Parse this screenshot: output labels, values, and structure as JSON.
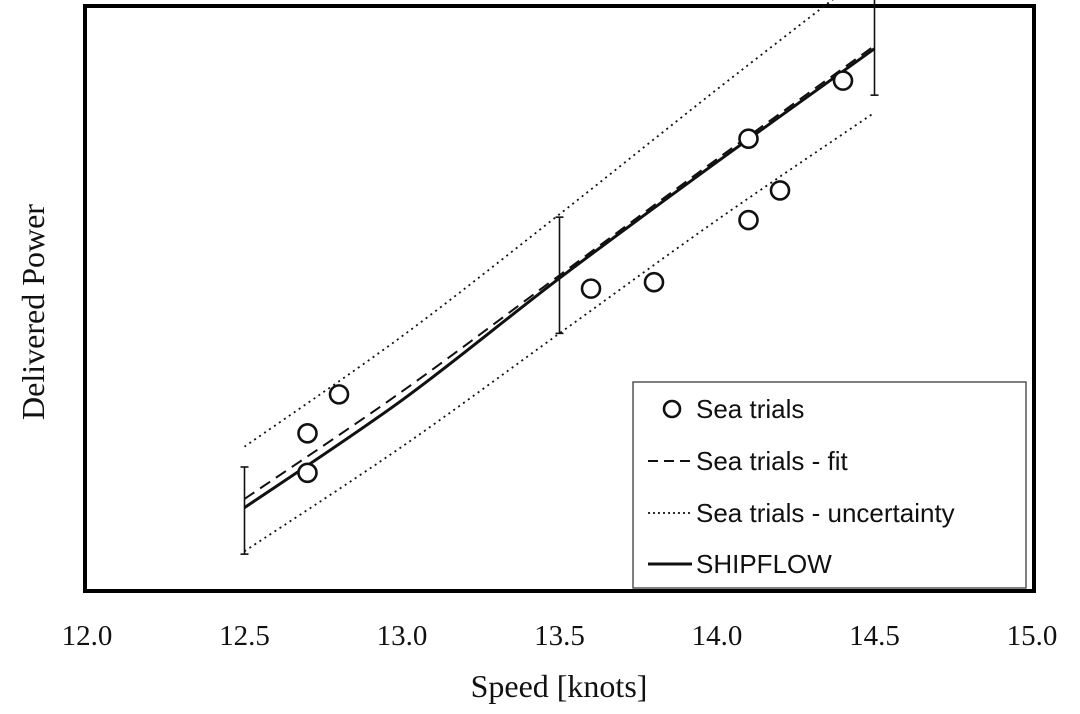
{
  "chart_data": {
    "type": "scatter",
    "title": "",
    "xlabel": "Speed [knots]",
    "ylabel": "Delivered Power",
    "xlim": [
      12.0,
      15.0
    ],
    "ylim": [
      0,
      1
    ],
    "x_ticks": [
      "12.0",
      "12.5",
      "13.0",
      "13.5",
      "14.0",
      "14.5",
      "15.0"
    ],
    "y_ticks": [],
    "grid": false,
    "legend_position": "bottom-right",
    "series": [
      {
        "name": "Sea trials",
        "kind": "markers",
        "marker": "open-circle",
        "color": "#111111",
        "x": [
          12.7,
          12.7,
          12.8,
          13.6,
          13.8,
          14.1,
          14.1,
          14.2,
          14.4
        ],
        "y": [
          0.2,
          0.268,
          0.335,
          0.517,
          0.528,
          0.635,
          0.775,
          0.686,
          0.875
        ]
      },
      {
        "name": "Sea trials - fit",
        "kind": "line",
        "style": "dashed",
        "color": "#111111",
        "x": [
          12.5,
          13.0,
          13.5,
          14.0,
          14.5
        ],
        "y": [
          0.155,
          0.34,
          0.54,
          0.74,
          0.935
        ]
      },
      {
        "name": "Sea trials - uncertainty",
        "kind": "band",
        "style": "dotted",
        "color": "#111111",
        "x": [
          12.5,
          13.0,
          13.5,
          14.0,
          14.5
        ],
        "upper": [
          0.245,
          0.435,
          0.645,
          0.86,
          1.07
        ],
        "lower": [
          0.065,
          0.245,
          0.44,
          0.635,
          0.82
        ]
      },
      {
        "name": "SHIPFLOW",
        "kind": "line",
        "style": "solid",
        "color": "#111111",
        "x": [
          12.5,
          13.0,
          13.5,
          14.0,
          14.5
        ],
        "y": [
          0.14,
          0.325,
          0.535,
          0.735,
          0.93
        ]
      }
    ],
    "error_bars": [
      {
        "x": 12.5,
        "low": 0.06,
        "high": 0.21
      },
      {
        "x": 13.5,
        "low": 0.44,
        "high": 0.64
      },
      {
        "x": 14.5,
        "low": 0.85,
        "high": 1.05
      }
    ]
  }
}
